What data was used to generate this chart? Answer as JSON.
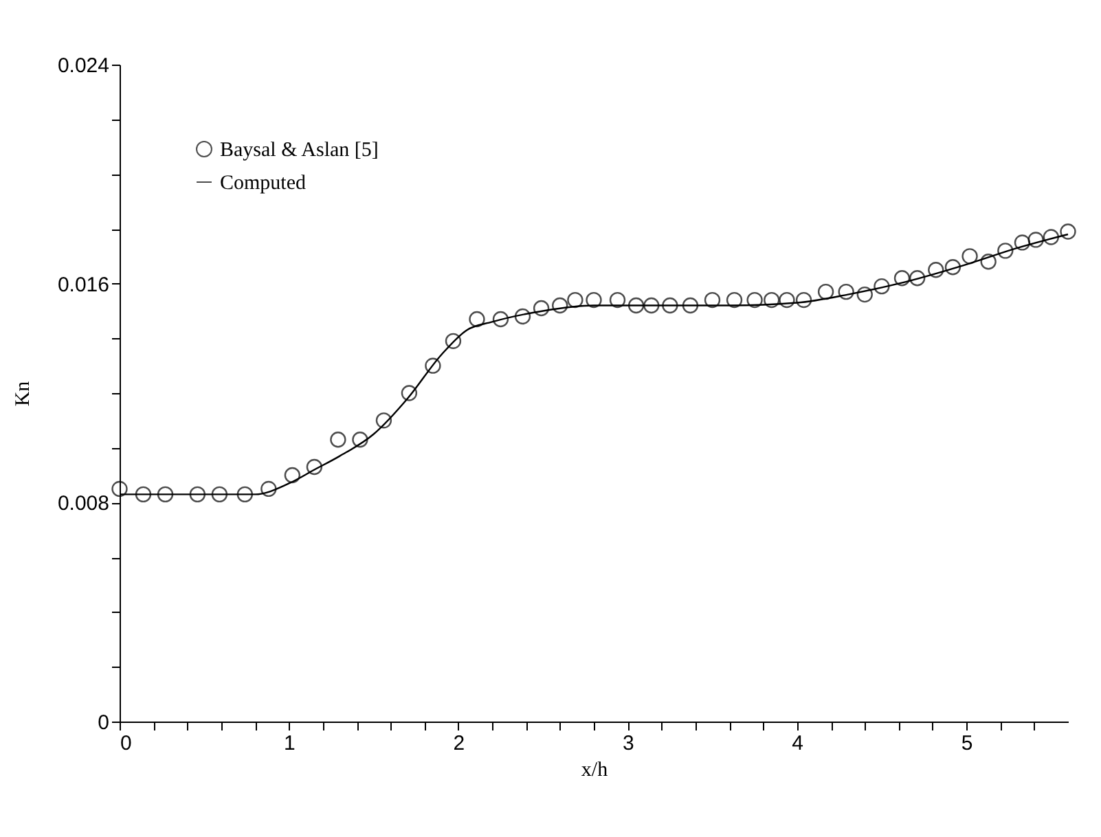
{
  "chart_data": {
    "type": "scatter",
    "xlabel": "x/h",
    "ylabel": "Kn",
    "xlim": [
      0,
      5.6
    ],
    "ylim": [
      0,
      0.024
    ],
    "xticks": [
      0,
      {
        "value": 0.2,
        "label": null
      },
      {
        "value": 0.4,
        "label": null
      },
      {
        "value": 0.6,
        "label": null
      },
      {
        "value": 0.8,
        "label": null
      },
      1,
      {
        "value": 1.2,
        "label": null
      },
      {
        "value": 1.4,
        "label": null
      },
      {
        "value": 1.6,
        "label": null
      },
      {
        "value": 1.8,
        "label": null
      },
      2,
      {
        "value": 2.2,
        "label": null
      },
      {
        "value": 2.4,
        "label": null
      },
      {
        "value": 2.6,
        "label": null
      },
      {
        "value": 2.8,
        "label": null
      },
      3,
      {
        "value": 3.2,
        "label": null
      },
      {
        "value": 3.4,
        "label": null
      },
      {
        "value": 3.6,
        "label": null
      },
      {
        "value": 3.8,
        "label": null
      },
      4,
      {
        "value": 4.2,
        "label": null
      },
      {
        "value": 4.4,
        "label": null
      },
      {
        "value": 4.6,
        "label": null
      },
      {
        "value": 4.8,
        "label": null
      },
      5,
      {
        "value": 5.2,
        "label": null
      },
      {
        "value": 5.4,
        "label": null
      }
    ],
    "yticks": [
      0,
      {
        "value": 0.002,
        "label": null
      },
      {
        "value": 0.004,
        "label": null
      },
      {
        "value": 0.006,
        "label": null
      },
      0.008,
      {
        "value": 0.01,
        "label": null
      },
      {
        "value": 0.012,
        "label": null
      },
      {
        "value": 0.014,
        "label": null
      },
      0.016,
      {
        "value": 0.018,
        "label": null
      },
      {
        "value": 0.02,
        "label": null
      },
      {
        "value": 0.022,
        "label": null
      },
      0.024
    ],
    "grid": false,
    "legend": "top left",
    "series": [
      {
        "name": "Baysal & Aslan [5]",
        "marker": "circle",
        "color": "#000000",
        "x": [
          0.0,
          0.14,
          0.27,
          0.46,
          0.59,
          0.74,
          0.88,
          1.02,
          1.15,
          1.29,
          1.42,
          1.56,
          1.71,
          1.85,
          1.97,
          2.11,
          2.25,
          2.38,
          2.49,
          2.6,
          2.69,
          2.8,
          2.94,
          3.05,
          3.14,
          3.25,
          3.37,
          3.5,
          3.63,
          3.75,
          3.85,
          3.94,
          4.04,
          4.17,
          4.29,
          4.4,
          4.5,
          4.62,
          4.71,
          4.82,
          4.92,
          5.02,
          5.13,
          5.23,
          5.33,
          5.41,
          5.5,
          5.6
        ],
        "values": [
          0.0085,
          0.0083,
          0.0083,
          0.0083,
          0.0083,
          0.0083,
          0.0085,
          0.009,
          0.0093,
          0.0103,
          0.0103,
          0.011,
          0.012,
          0.013,
          0.0139,
          0.0147,
          0.0147,
          0.0148,
          0.0151,
          0.0152,
          0.0154,
          0.0154,
          0.0154,
          0.0152,
          0.0152,
          0.0152,
          0.0152,
          0.0154,
          0.0154,
          0.0154,
          0.0154,
          0.0154,
          0.0154,
          0.0157,
          0.0157,
          0.0156,
          0.0159,
          0.0162,
          0.0162,
          0.0165,
          0.0166,
          0.017,
          0.0168,
          0.0172,
          0.0175,
          0.0176,
          0.0177,
          0.0179
        ]
      },
      {
        "name": "Computed",
        "type": "line",
        "marker": "none",
        "line_style": "solid",
        "color": "#000000",
        "x": [
          0,
          0.4,
          0.8,
          1.0,
          1.15,
          1.3,
          1.5,
          1.7,
          1.9,
          2.05,
          2.2,
          2.5,
          2.8,
          3.2,
          3.6,
          4.0,
          4.3,
          4.6,
          5.0,
          5.3,
          5.6
        ],
        "values": [
          0.0083,
          0.0083,
          0.0083,
          0.0087,
          0.0092,
          0.0097,
          0.0105,
          0.0118,
          0.0134,
          0.0143,
          0.0146,
          0.015,
          0.0152,
          0.0152,
          0.0152,
          0.0153,
          0.0156,
          0.016,
          0.0167,
          0.0173,
          0.0178
        ]
      }
    ]
  }
}
